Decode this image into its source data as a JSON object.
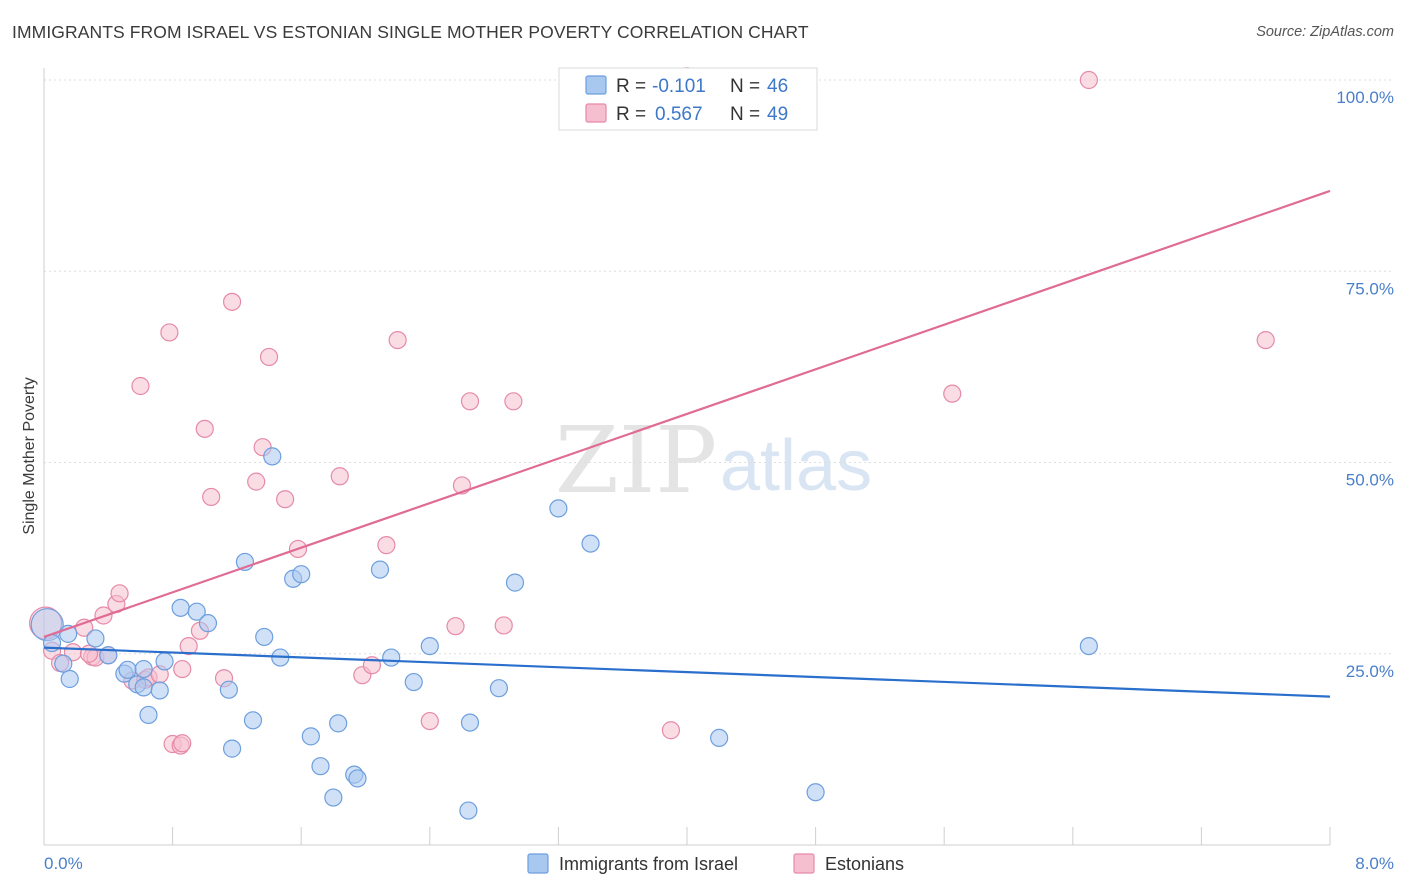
{
  "title": "IMMIGRANTS FROM ISRAEL VS ESTONIAN SINGLE MOTHER POVERTY CORRELATION CHART",
  "source": "Source: ZipAtlas.com",
  "watermark": {
    "zip": "ZIP",
    "atlas": "atlas"
  },
  "legend": {
    "r_label": "R =",
    "n_label": "N =",
    "entries": [
      {
        "r": "-0.101",
        "n": "46"
      },
      {
        "r": "0.567",
        "n": "49"
      }
    ]
  },
  "bottom_legend": [
    "Immigrants from Israel",
    "Estonians"
  ],
  "colors": {
    "israel_fill": "#a9c8f0",
    "israel_stroke": "#6d9fde",
    "israel_line": "#2a6fcc",
    "estonian_fill": "#f6bfd0",
    "estonian_stroke": "#e68aa8",
    "estonian_line": "#e06b95",
    "tick_label": "#4a7fc9"
  },
  "chart_data": {
    "type": "scatter",
    "title": "IMMIGRANTS FROM ISRAEL VS ESTONIAN SINGLE MOTHER POVERTY CORRELATION CHART",
    "xlabel": "",
    "ylabel": "Single Mother Poverty",
    "xlim": [
      0,
      8
    ],
    "ylim": [
      0,
      100
    ],
    "x_tick_labels": [
      "0.0%",
      "8.0%"
    ],
    "y_tick_labels": [
      "25.0%",
      "50.0%",
      "75.0%",
      "100.0%"
    ],
    "y_ticks": [
      25,
      50,
      75,
      100
    ],
    "grid": true,
    "legend_position": "top-center",
    "series": [
      {
        "name": "Immigrants from Israel",
        "r": -0.101,
        "n": 46,
        "trend": {
          "x": [
            0,
            8
          ],
          "y": [
            25.8,
            19.4
          ]
        },
        "points": [
          [
            0.02,
            28.8
          ],
          [
            0.05,
            26.4
          ],
          [
            0.15,
            27.6
          ],
          [
            0.12,
            23.7
          ],
          [
            0.16,
            21.7
          ],
          [
            0.32,
            27.0
          ],
          [
            0.4,
            24.8
          ],
          [
            0.5,
            22.4
          ],
          [
            0.52,
            22.9
          ],
          [
            0.58,
            21.0
          ],
          [
            0.62,
            20.6
          ],
          [
            0.65,
            17.0
          ],
          [
            0.72,
            20.2
          ],
          [
            0.75,
            24.0
          ],
          [
            0.85,
            31.0
          ],
          [
            0.95,
            30.5
          ],
          [
            1.02,
            29.0
          ],
          [
            1.15,
            20.3
          ],
          [
            1.17,
            12.6
          ],
          [
            1.25,
            37.0
          ],
          [
            1.3,
            16.3
          ],
          [
            1.37,
            27.2
          ],
          [
            1.47,
            24.5
          ],
          [
            1.55,
            34.8
          ],
          [
            1.6,
            35.4
          ],
          [
            1.66,
            14.2
          ],
          [
            1.72,
            10.3
          ],
          [
            1.8,
            6.2
          ],
          [
            1.83,
            15.9
          ],
          [
            1.93,
            9.2
          ],
          [
            1.95,
            8.7
          ],
          [
            2.09,
            36.0
          ],
          [
            2.16,
            24.5
          ],
          [
            2.3,
            21.3
          ],
          [
            2.4,
            26.0
          ],
          [
            2.64,
            4.5
          ],
          [
            2.65,
            16.0
          ],
          [
            2.83,
            20.5
          ],
          [
            2.93,
            34.3
          ],
          [
            3.2,
            44.0
          ],
          [
            3.4,
            39.4
          ],
          [
            4.2,
            14.0
          ],
          [
            4.8,
            6.9
          ],
          [
            6.5,
            26.0
          ],
          [
            1.42,
            50.8
          ],
          [
            0.62,
            23.0
          ]
        ]
      },
      {
        "name": "Estonians",
        "r": 0.567,
        "n": 49,
        "trend": {
          "x": [
            0,
            8
          ],
          "y": [
            27.2,
            85.5
          ]
        },
        "points": [
          [
            0.01,
            29.0
          ],
          [
            0.05,
            25.4
          ],
          [
            0.1,
            23.8
          ],
          [
            0.18,
            25.2
          ],
          [
            0.25,
            28.4
          ],
          [
            0.3,
            24.6
          ],
          [
            0.32,
            24.5
          ],
          [
            0.37,
            30.0
          ],
          [
            0.45,
            31.5
          ],
          [
            0.47,
            32.9
          ],
          [
            0.55,
            21.5
          ],
          [
            0.6,
            60.0
          ],
          [
            0.63,
            21.6
          ],
          [
            0.65,
            21.9
          ],
          [
            0.72,
            22.3
          ],
          [
            0.78,
            67.0
          ],
          [
            0.8,
            13.2
          ],
          [
            0.85,
            13.0
          ],
          [
            0.86,
            13.3
          ],
          [
            0.86,
            23.0
          ],
          [
            0.9,
            26.0
          ],
          [
            0.97,
            28.0
          ],
          [
            1.0,
            54.4
          ],
          [
            1.04,
            45.5
          ],
          [
            1.12,
            21.8
          ],
          [
            1.17,
            71.0
          ],
          [
            1.32,
            47.5
          ],
          [
            1.36,
            52.0
          ],
          [
            1.4,
            63.8
          ],
          [
            1.5,
            45.2
          ],
          [
            1.58,
            38.7
          ],
          [
            1.84,
            48.2
          ],
          [
            1.98,
            22.2
          ],
          [
            2.04,
            23.5
          ],
          [
            2.13,
            39.2
          ],
          [
            2.2,
            66.0
          ],
          [
            2.4,
            16.2
          ],
          [
            2.56,
            28.6
          ],
          [
            2.6,
            47.0
          ],
          [
            2.65,
            58.0
          ],
          [
            2.86,
            28.7
          ],
          [
            2.92,
            58.0
          ],
          [
            3.9,
            15.0
          ],
          [
            5.65,
            59.0
          ],
          [
            6.5,
            100.0
          ],
          [
            7.6,
            66.0
          ],
          [
            0.4,
            24.8
          ],
          [
            0.28,
            25.0
          ],
          [
            4.0,
            100.5
          ]
        ]
      }
    ]
  }
}
